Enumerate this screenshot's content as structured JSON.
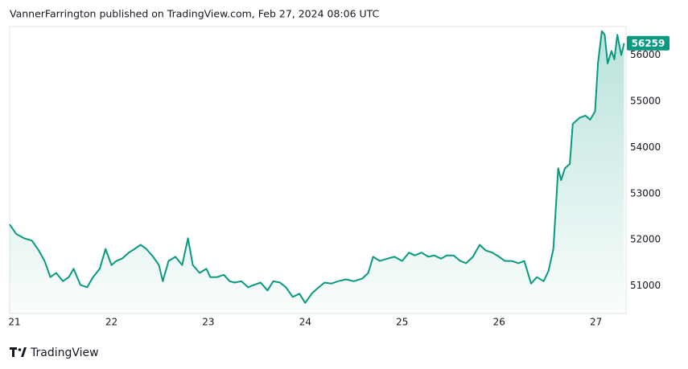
{
  "chart_data": {
    "type": "area",
    "title": "VannerFarrington published on TradingView.com, Feb 27, 2024 08:06 UTC",
    "source": "TradingView",
    "color": "#089981",
    "x": [
      20.95,
      21.02,
      21.1,
      21.18,
      21.25,
      21.31,
      21.37,
      21.43,
      21.5,
      21.56,
      21.61,
      21.68,
      21.75,
      21.81,
      21.88,
      21.94,
      22.0,
      22.05,
      22.11,
      22.18,
      22.24,
      22.3,
      22.36,
      22.43,
      22.49,
      22.53,
      22.59,
      22.66,
      22.73,
      22.79,
      22.84,
      22.91,
      22.98,
      23.02,
      23.09,
      23.16,
      23.22,
      23.27,
      23.34,
      23.41,
      23.47,
      23.54,
      23.61,
      23.67,
      23.74,
      23.8,
      23.87,
      23.94,
      24.0,
      24.07,
      24.14,
      24.2,
      24.27,
      24.34,
      24.42,
      24.5,
      24.59,
      24.65,
      24.7,
      24.77,
      24.83,
      24.92,
      25.0,
      25.07,
      25.13,
      25.2,
      25.27,
      25.33,
      25.4,
      25.46,
      25.53,
      25.6,
      25.66,
      25.73,
      25.8,
      25.86,
      25.93,
      26.0,
      26.06,
      26.13,
      26.2,
      26.26,
      26.33,
      26.39,
      26.46,
      26.51,
      26.56,
      26.61,
      26.64,
      26.68,
      26.73,
      26.76,
      26.83,
      26.89,
      26.94,
      26.99,
      27.02,
      27.06,
      27.09,
      27.12,
      27.16,
      27.19,
      27.22,
      27.26,
      27.29
    ],
    "values": [
      52330,
      52120,
      52030,
      51980,
      51770,
      51540,
      51190,
      51280,
      51100,
      51190,
      51370,
      51020,
      50970,
      51190,
      51370,
      51800,
      51450,
      51540,
      51590,
      51720,
      51800,
      51890,
      51800,
      51630,
      51450,
      51100,
      51540,
      51630,
      51450,
      52030,
      51450,
      51280,
      51370,
      51190,
      51190,
      51240,
      51100,
      51070,
      51100,
      50970,
      51020,
      51070,
      50900,
      51100,
      51070,
      50970,
      50760,
      50830,
      50630,
      50840,
      50970,
      51070,
      51050,
      51100,
      51140,
      51100,
      51160,
      51280,
      51630,
      51540,
      51580,
      51630,
      51540,
      51720,
      51660,
      51720,
      51630,
      51660,
      51590,
      51660,
      51660,
      51540,
      51490,
      51630,
      51890,
      51770,
      51720,
      51630,
      51540,
      51540,
      51490,
      51540,
      51050,
      51190,
      51100,
      51320,
      51800,
      53550,
      53290,
      53550,
      53640,
      54510,
      54640,
      54690,
      54600,
      54780,
      55820,
      56520,
      56440,
      55820,
      56090,
      55910,
      56440,
      56000,
      56259
    ],
    "xlim": [
      20.95,
      27.31
    ],
    "xticks": [
      21,
      22,
      23,
      24,
      25,
      26,
      27
    ],
    "ylim": [
      50400,
      56620
    ],
    "yticks": [
      51000,
      52000,
      53000,
      54000,
      55000,
      56000
    ],
    "grid": false
  }
}
